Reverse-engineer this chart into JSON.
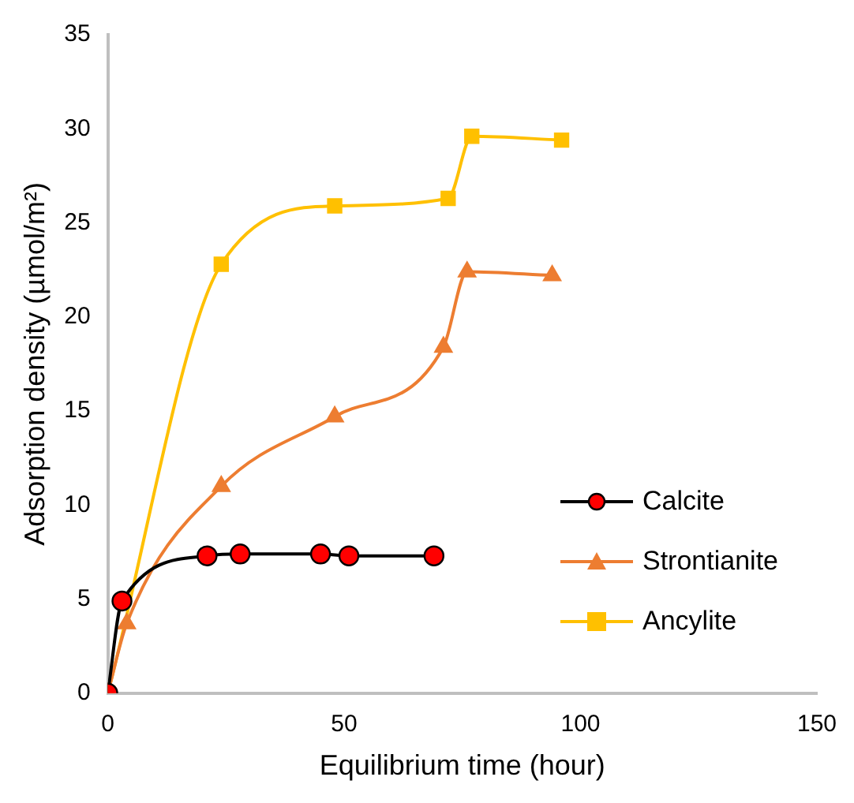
{
  "chart_data": {
    "type": "line",
    "xlabel": "Equilibrium time (hour)",
    "ylabel": "Adsorption density (µmol/m²)",
    "xlim": [
      0,
      150
    ],
    "xticks": [
      0,
      50,
      100,
      150
    ],
    "ylim": [
      0,
      35
    ],
    "yticks": [
      0,
      5,
      10,
      15,
      20,
      25,
      30,
      35
    ],
    "legend": "right",
    "series": [
      {
        "name": "Calcite",
        "color": "#000000",
        "marker": "circle",
        "x": [
          0,
          3,
          21,
          28,
          45,
          51,
          69
        ],
        "values": [
          0,
          4.9,
          7.3,
          7.4,
          7.4,
          7.3,
          7.3
        ]
      },
      {
        "name": "Strontianite",
        "color": "#ed7d31",
        "marker": "triangle",
        "x": [
          0,
          4,
          24,
          48,
          71,
          76,
          94
        ],
        "values": [
          0,
          3.7,
          11,
          14.7,
          18.4,
          22.4,
          22.2
        ]
      },
      {
        "name": "Ancylite",
        "color": "#ffc000",
        "marker": "square",
        "x": [
          0,
          24,
          48,
          72,
          77,
          96
        ],
        "values": [
          0,
          22.8,
          25.9,
          26.3,
          29.6,
          29.4
        ]
      }
    ]
  }
}
